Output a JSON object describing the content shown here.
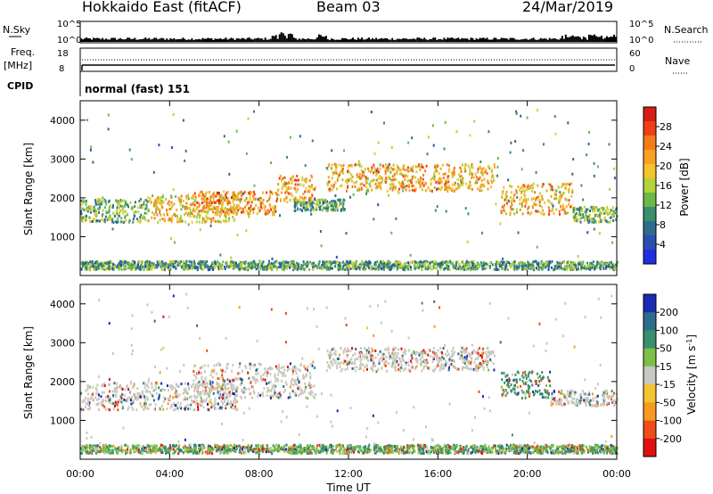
{
  "header": {
    "radar": "Hokkaido East (fitACF)",
    "beam": "Beam 03",
    "date": "24/Mar/2019"
  },
  "strip_labels": {
    "nsky": "N.Sky",
    "nsearch": "N.Search",
    "freq_top": "Freq.",
    "freq_unit": "[MHz]",
    "nave": "Nave",
    "cpid": "CPID",
    "cpid_text": "normal (fast) 151",
    "noise_left_ticks": [
      "10^5",
      "10^0"
    ],
    "noise_right_ticks": [
      "10^5",
      "10^0"
    ],
    "freq_left_ticks": [
      "18",
      "8"
    ],
    "nave_right_ticks": [
      "60",
      "0"
    ]
  },
  "colorbars": {
    "power": {
      "label": "Power [dB]",
      "ticks": [
        "28",
        "24",
        "20",
        "16",
        "12",
        "8",
        "4"
      ],
      "colors": [
        "#d71d14",
        "#ee3f18",
        "#f47c18",
        "#f8a222",
        "#f4c42e",
        "#b6d23a",
        "#6eb84a",
        "#3a8e6e",
        "#2d6c8c",
        "#2a4fb0",
        "#1f2fe0"
      ]
    },
    "velocity": {
      "label": "Velocity [m s^-1]",
      "ticks": [
        "200",
        "100",
        "50",
        "15",
        "-15",
        "-50",
        "-100",
        "-200"
      ],
      "colors": [
        "#1a2bb4",
        "#2d6c8c",
        "#3a8e6e",
        "#7cc04a",
        "#c8c8c0",
        "#f4c42e",
        "#f89a22",
        "#ef4d18",
        "#e01010"
      ]
    }
  },
  "chart_data": [
    {
      "type": "heatmap",
      "name": "power",
      "ylabel": "Slant Range [km]",
      "ylim": [
        0,
        4500
      ],
      "yticks": [
        "4000",
        "3000",
        "2000",
        "1000"
      ],
      "xlim": [
        "00:00",
        "24:00"
      ],
      "zlabel": "Power [dB]",
      "zlim": [
        0,
        30
      ],
      "bands": [
        {
          "t0": 0.0,
          "t1": 3.0,
          "r0": 1400,
          "r1": 2000,
          "p": 12
        },
        {
          "t0": 3.0,
          "t1": 7.0,
          "r0": 1400,
          "r1": 2100,
          "p": 18
        },
        {
          "t0": 5.0,
          "t1": 8.8,
          "r0": 1600,
          "r1": 2200,
          "p": 22
        },
        {
          "t0": 8.8,
          "t1": 10.5,
          "r0": 1900,
          "r1": 2600,
          "p": 21
        },
        {
          "t0": 9.5,
          "t1": 11.8,
          "r0": 1700,
          "r1": 2000,
          "p": 10
        },
        {
          "t0": 11.0,
          "t1": 18.5,
          "r0": 2200,
          "r1": 2900,
          "p": 20
        },
        {
          "t0": 18.8,
          "t1": 22.0,
          "r0": 1600,
          "r1": 2400,
          "p": 20
        },
        {
          "t0": 22.0,
          "t1": 24.0,
          "r0": 1400,
          "r1": 1800,
          "p": 12
        },
        {
          "t0": 0.0,
          "t1": 24.0,
          "r0": 180,
          "r1": 400,
          "p": 10
        }
      ]
    },
    {
      "type": "heatmap",
      "name": "velocity",
      "ylabel": "Slant Range [km]",
      "ylim": [
        0,
        4500
      ],
      "yticks": [
        "4000",
        "3000",
        "2000",
        "1000"
      ],
      "xlim": [
        "00:00",
        "24:00"
      ],
      "xticks": [
        "00:00",
        "04:00",
        "08:00",
        "12:00",
        "16:00",
        "20:00",
        "00:00"
      ],
      "xlabel": "Time UT",
      "zlabel": "Velocity [m s^-1]",
      "zlim": [
        -200,
        200
      ],
      "bands": [
        {
          "t0": 0.0,
          "t1": 7.0,
          "r0": 1300,
          "r1": 2000,
          "v": 0
        },
        {
          "t0": 5.0,
          "t1": 10.5,
          "r0": 1600,
          "r1": 2500,
          "v": 5
        },
        {
          "t0": 11.0,
          "t1": 18.5,
          "r0": 2300,
          "r1": 2900,
          "v": -5
        },
        {
          "t0": 18.8,
          "t1": 21.0,
          "r0": 1600,
          "r1": 2300,
          "v": 40
        },
        {
          "t0": 21.0,
          "t1": 24.0,
          "r0": 1400,
          "r1": 1800,
          "v": 0
        },
        {
          "t0": 0.0,
          "t1": 24.0,
          "r0": 180,
          "r1": 400,
          "v": 30
        }
      ]
    }
  ]
}
